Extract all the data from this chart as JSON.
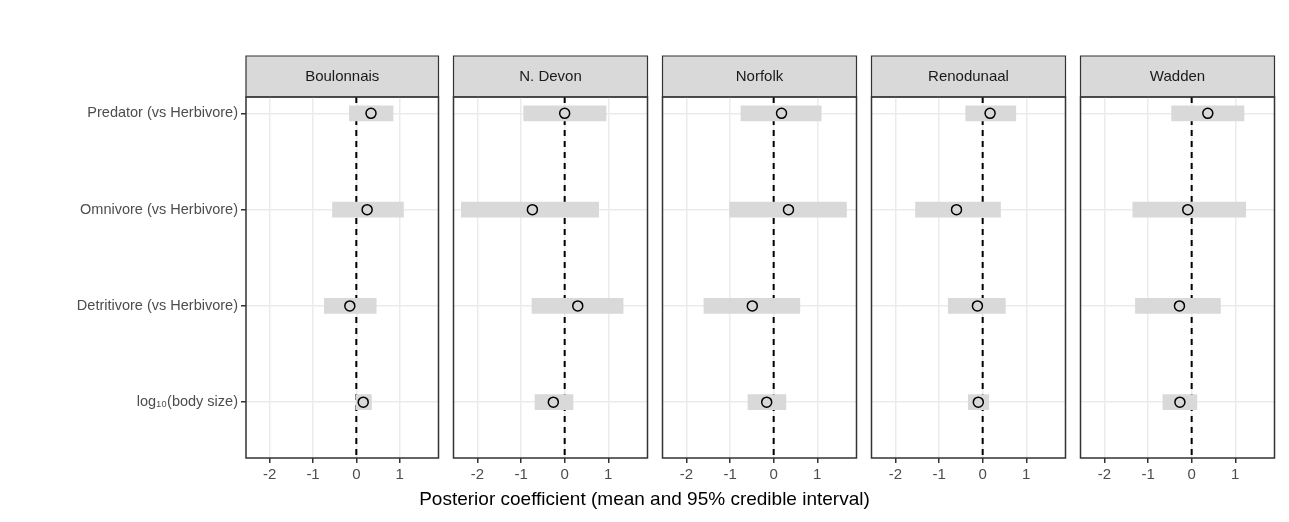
{
  "chart_data": [
    {
      "type": "bar",
      "title": "Boulonnais",
      "orientation": "horizontal",
      "categories": [
        "Predator (vs Herbivore)",
        "Omnivore (vs Herbivore)",
        "Detritivore (vs Herbivore)",
        "log₁₀(body size)"
      ],
      "series": [
        {
          "color": "#d9d9d9",
          "base": [
            -0.16,
            -0.55,
            -0.74,
            -0.01
          ],
          "values": [
            1.01,
            1.64,
            1.2,
            0.36
          ]
        },
        {
          "type": "scatter",
          "color": "#000000",
          "values": [
            0.34,
            0.25,
            -0.15,
            0.16
          ]
        }
      ],
      "marker": "circle",
      "xlim": [
        -2.55,
        1.9
      ],
      "xticks": [
        -2,
        -1,
        0,
        1
      ],
      "grid": true,
      "ref_lines": [
        {
          "axis": "x",
          "value": 0,
          "line_style": "dashed",
          "color": "#000000"
        }
      ]
    },
    {
      "type": "bar",
      "title": "N. Devon",
      "orientation": "horizontal",
      "categories": [
        null,
        null,
        null,
        null
      ],
      "series": [
        {
          "color": "#d9d9d9",
          "base": [
            -0.94,
            -2.37,
            -0.75,
            -0.68
          ],
          "values": [
            1.89,
            3.15,
            2.09,
            0.87
          ]
        },
        {
          "type": "scatter",
          "color": "#000000",
          "values": [
            0,
            -0.74,
            0.3,
            -0.26
          ]
        }
      ],
      "marker": "circle",
      "xlim": [
        -2.55,
        1.9
      ],
      "xticks": [
        -2,
        -1,
        0,
        1
      ],
      "grid": true,
      "tick_labels": "x",
      "ref_lines": [
        {
          "axis": "x",
          "value": 0,
          "line_style": "dashed",
          "color": "#000000"
        }
      ]
    },
    {
      "type": "bar",
      "title": "Norfolk",
      "xlabel": "Posterior coefficient (mean and 95% credible interval)",
      "orientation": "horizontal",
      "categories": [
        null,
        null,
        null,
        null
      ],
      "series": [
        {
          "color": "#d9d9d9",
          "base": [
            -0.75,
            -1.01,
            -1.6,
            -0.59
          ],
          "values": [
            1.84,
            2.68,
            2.2,
            0.87
          ]
        },
        {
          "type": "scatter",
          "color": "#000000",
          "values": [
            0.18,
            0.34,
            -0.49,
            -0.16
          ]
        }
      ],
      "marker": "circle",
      "xlim": [
        -2.55,
        1.9
      ],
      "xticks": [
        -2,
        -1,
        0,
        1
      ],
      "grid": true,
      "tick_labels": "x",
      "ref_lines": [
        {
          "axis": "x",
          "value": 0,
          "line_style": "dashed",
          "color": "#000000"
        }
      ]
    },
    {
      "type": "bar",
      "title": "Renodunaal",
      "orientation": "horizontal",
      "categories": [
        null,
        null,
        null,
        null
      ],
      "series": [
        {
          "color": "#d9d9d9",
          "base": [
            -0.39,
            -1.54,
            -0.79,
            -0.33
          ],
          "values": [
            1.15,
            1.95,
            1.31,
            0.47
          ]
        },
        {
          "type": "scatter",
          "color": "#000000",
          "values": [
            0.17,
            -0.6,
            -0.12,
            -0.1
          ]
        }
      ],
      "marker": "circle",
      "xlim": [
        -2.55,
        1.9
      ],
      "xticks": [
        -2,
        -1,
        0,
        1
      ],
      "grid": true,
      "tick_labels": "x",
      "ref_lines": [
        {
          "axis": "x",
          "value": 0,
          "line_style": "dashed",
          "color": "#000000"
        }
      ]
    },
    {
      "type": "bar",
      "title": "Wadden",
      "orientation": "horizontal",
      "categories": [
        null,
        null,
        null,
        null
      ],
      "series": [
        {
          "color": "#d9d9d9",
          "base": [
            -0.46,
            -1.35,
            -1.29,
            -0.66
          ],
          "values": [
            1.66,
            2.59,
            1.95,
            0.78
          ]
        },
        {
          "type": "scatter",
          "color": "#000000",
          "values": [
            0.37,
            -0.09,
            -0.28,
            -0.27
          ]
        }
      ],
      "marker": "circle",
      "xlim": [
        -2.55,
        1.9
      ],
      "xticks": [
        -2,
        -1,
        0,
        1
      ],
      "grid": true,
      "tick_labels": "x",
      "ref_lines": [
        {
          "axis": "x",
          "value": 0,
          "line_style": "dashed",
          "color": "#000000"
        }
      ]
    }
  ]
}
